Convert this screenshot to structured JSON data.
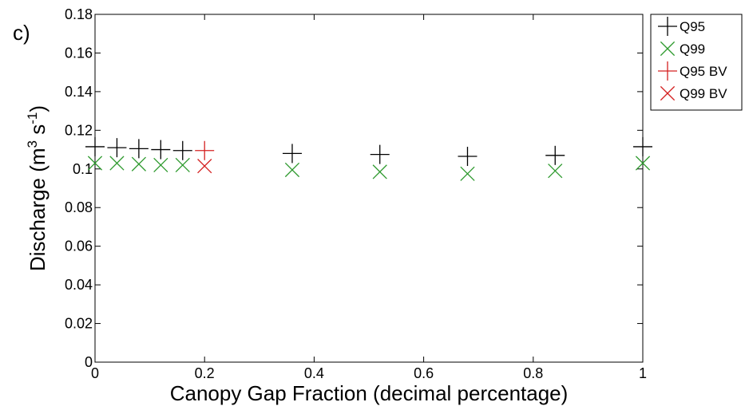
{
  "panel_label": "c)",
  "chart_data": {
    "type": "scatter",
    "title": "",
    "xlabel": "Canopy Gap Fraction (decimal percentage)",
    "ylabel_prefix": "Discharge (m",
    "ylabel_sup1": "3",
    "ylabel_mid": " s",
    "ylabel_sup2": "-1",
    "ylabel_suffix": ")",
    "xlim": [
      0,
      1
    ],
    "ylim": [
      0,
      0.18
    ],
    "xticks": [
      0,
      0.2,
      0.4,
      0.6,
      0.8,
      1
    ],
    "xtick_labels": [
      "0",
      "0.2",
      "0.4",
      "0.6",
      "0.8",
      "1"
    ],
    "yticks": [
      0,
      0.02,
      0.04,
      0.06,
      0.08,
      0.1,
      0.12,
      0.14,
      0.16,
      0.18
    ],
    "ytick_labels": [
      "0",
      "0.02",
      "0.04",
      "0.06",
      "0.08",
      "0.1",
      "0.12",
      "0.14",
      "0.16",
      "0.18"
    ],
    "grid": false,
    "legend_position": "outside-top-right",
    "series": [
      {
        "name": "Q95",
        "marker": "plus",
        "color": "#000000",
        "x": [
          0,
          0.04,
          0.08,
          0.12,
          0.16,
          0.36,
          0.52,
          0.68,
          0.84,
          1
        ],
        "y": [
          0.1115,
          0.111,
          0.1105,
          0.11,
          0.1095,
          0.108,
          0.1075,
          0.1065,
          0.107,
          0.1115
        ]
      },
      {
        "name": "Q99",
        "marker": "x",
        "color": "#2e9a2e",
        "x": [
          0,
          0.04,
          0.08,
          0.12,
          0.16,
          0.36,
          0.52,
          0.68,
          0.84,
          1
        ],
        "y": [
          0.103,
          0.103,
          0.1025,
          0.102,
          0.102,
          0.0995,
          0.0985,
          0.0975,
          0.099,
          0.103
        ]
      },
      {
        "name": "Q95 BV",
        "marker": "plus",
        "color": "#d42020",
        "x": [
          0.2
        ],
        "y": [
          0.1095
        ]
      },
      {
        "name": "Q99 BV",
        "marker": "x",
        "color": "#d42020",
        "x": [
          0.2
        ],
        "y": [
          0.1015
        ]
      }
    ]
  }
}
